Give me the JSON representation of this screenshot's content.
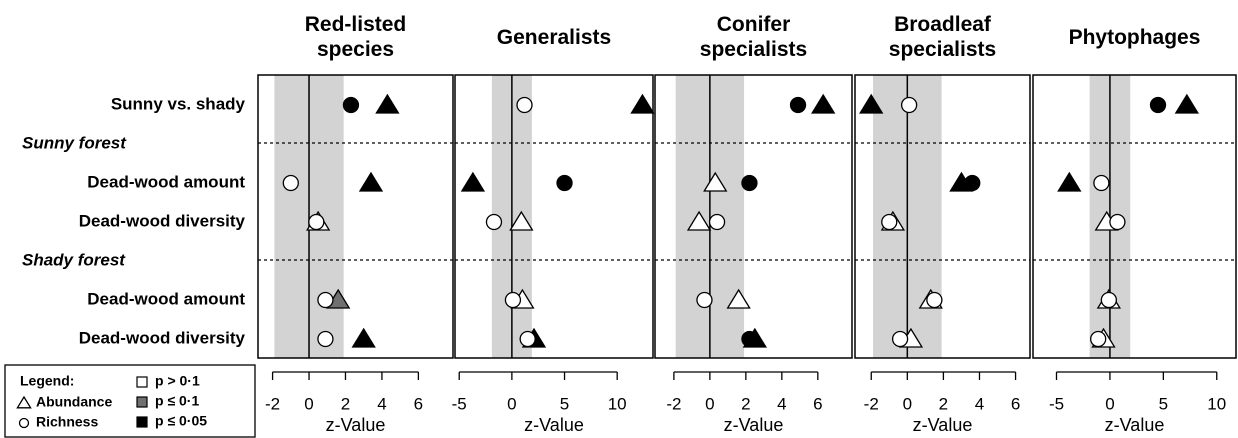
{
  "rows": [
    {
      "label": "Sunny vs. shady"
    },
    {
      "group": "Sunny forest"
    },
    {
      "label": "Dead-wood amount"
    },
    {
      "label": "Dead-wood diversity"
    },
    {
      "group": "Shady forest"
    },
    {
      "label": "Dead-wood amount"
    },
    {
      "label": "Dead-wood diversity"
    }
  ],
  "legend": {
    "title": "Legend:",
    "markers": [
      {
        "label": "Abundance",
        "shape": "triangle"
      },
      {
        "label": "Richness",
        "shape": "circle"
      }
    ],
    "significance": [
      {
        "label": "p > 0·1",
        "color": "#ffffff"
      },
      {
        "label": "p ≤ 0·1",
        "color": "#707070"
      },
      {
        "label": "p ≤ 0·05",
        "color": "#000000"
      }
    ]
  },
  "chart_data": [
    {
      "type": "scatter",
      "title": "Red-listed species",
      "xlabel": "z-Value",
      "xlim": [
        -2.8,
        7.9
      ],
      "xticks": [
        -2,
        0,
        2,
        4,
        6
      ],
      "band": [
        -1.9,
        1.9
      ],
      "series": [
        {
          "marker": "triangle",
          "values": [
            4.3,
            null,
            3.4,
            0.5,
            null,
            1.6,
            3.0
          ],
          "colors": [
            "#000000",
            null,
            "#000000",
            "#ffffff",
            null,
            "#707070",
            "#000000"
          ]
        },
        {
          "marker": "circle",
          "values": [
            2.3,
            null,
            -1.0,
            0.4,
            null,
            0.9,
            0.9
          ],
          "colors": [
            "#000000",
            null,
            "#ffffff",
            "#ffffff",
            null,
            "#ffffff",
            "#ffffff"
          ]
        }
      ]
    },
    {
      "type": "scatter",
      "title": "Generalists",
      "xlabel": "z-Value",
      "xlim": [
        -5.4,
        13.4
      ],
      "xticks": [
        -5,
        0,
        5,
        10
      ],
      "band": [
        -1.9,
        1.9
      ],
      "series": [
        {
          "marker": "triangle",
          "values": [
            12.4,
            null,
            -3.7,
            0.9,
            null,
            1.0,
            2.1
          ],
          "colors": [
            "#000000",
            null,
            "#000000",
            "#ffffff",
            null,
            "#ffffff",
            "#000000"
          ]
        },
        {
          "marker": "circle",
          "values": [
            1.2,
            null,
            5.0,
            -1.7,
            null,
            0.1,
            1.5
          ],
          "colors": [
            "#ffffff",
            null,
            "#000000",
            "#ffffff",
            null,
            "#ffffff",
            "#ffffff"
          ]
        }
      ]
    },
    {
      "type": "scatter",
      "title": "Conifer specialists",
      "xlabel": "z-Value",
      "xlim": [
        -3.05,
        7.9
      ],
      "xticks": [
        -2,
        0,
        2,
        4,
        6
      ],
      "band": [
        -1.9,
        1.9
      ],
      "series": [
        {
          "marker": "triangle",
          "values": [
            6.3,
            null,
            0.3,
            -0.6,
            null,
            1.6,
            2.5
          ],
          "colors": [
            "#000000",
            null,
            "#ffffff",
            "#ffffff",
            null,
            "#ffffff",
            "#000000"
          ]
        },
        {
          "marker": "circle",
          "values": [
            4.9,
            null,
            2.2,
            0.4,
            null,
            -0.3,
            2.2
          ],
          "colors": [
            "#000000",
            null,
            "#000000",
            "#ffffff",
            null,
            "#ffffff",
            "#000000"
          ]
        }
      ]
    },
    {
      "type": "scatter",
      "title": "Broadleaf specialists",
      "xlabel": "z-Value",
      "xlim": [
        -2.9,
        6.8
      ],
      "xticks": [
        -2,
        0,
        2,
        4,
        6
      ],
      "band": [
        -1.9,
        1.9
      ],
      "series": [
        {
          "marker": "triangle",
          "values": [
            -2.0,
            null,
            3.0,
            -0.8,
            null,
            1.3,
            0.2
          ],
          "colors": [
            "#000000",
            null,
            "#000000",
            "#ffffff",
            null,
            "#ffffff",
            "#ffffff"
          ]
        },
        {
          "marker": "circle",
          "values": [
            0.1,
            null,
            3.6,
            -1.0,
            null,
            1.5,
            -0.4
          ],
          "colors": [
            "#ffffff",
            null,
            "#000000",
            "#ffffff",
            null,
            "#ffffff",
            "#ffffff"
          ]
        }
      ]
    },
    {
      "type": "scatter",
      "title": "Phytophages",
      "xlabel": "z-Value",
      "xlim": [
        -7.2,
        11.8
      ],
      "xticks": [
        -5,
        0,
        5,
        10
      ],
      "band": [
        -1.9,
        1.9
      ],
      "series": [
        {
          "marker": "triangle",
          "values": [
            7.2,
            null,
            -3.8,
            -0.3,
            null,
            -0.1,
            -0.6
          ],
          "colors": [
            "#000000",
            null,
            "#000000",
            "#ffffff",
            null,
            "#ffffff",
            "#ffffff"
          ]
        },
        {
          "marker": "circle",
          "values": [
            4.5,
            null,
            -0.8,
            0.7,
            null,
            -0.1,
            -1.1
          ],
          "colors": [
            "#000000",
            null,
            "#ffffff",
            "#ffffff",
            null,
            "#ffffff",
            "#ffffff"
          ]
        }
      ]
    }
  ]
}
